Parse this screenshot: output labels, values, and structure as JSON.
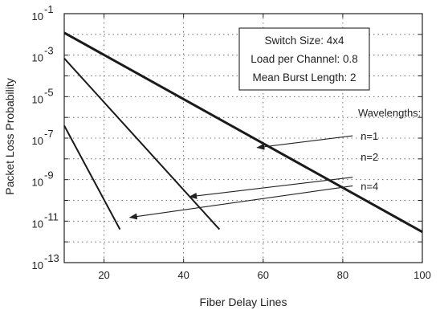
{
  "chart_data": {
    "type": "line",
    "title": "",
    "xlabel": "Fiber Delay Lines",
    "ylabel": "Packet Loss Probability",
    "x_range": [
      10,
      100
    ],
    "y_range": [
      1e-13,
      0.1
    ],
    "y_scale": "log",
    "grid": true,
    "x_ticks": [
      20,
      40,
      60,
      80,
      100
    ],
    "x_tick_labels": [
      "20",
      "40",
      "60",
      "80",
      "100"
    ],
    "y_ticks": [
      -13,
      -11,
      -9,
      -7,
      -5,
      -3,
      -1
    ],
    "y_tick_labels": [
      {
        "base": "10",
        "exp": "-13"
      },
      {
        "base": "10",
        "exp": "-11"
      },
      {
        "base": "10",
        "exp": "-9"
      },
      {
        "base": "10",
        "exp": "-7"
      },
      {
        "base": "10",
        "exp": "-5"
      },
      {
        "base": "10",
        "exp": "-3"
      },
      {
        "base": "10",
        "exp": "-1"
      }
    ],
    "info_box": [
      "Switch Size: 4x4",
      "Load per Channel: 0.8",
      "Mean Burst Length: 2"
    ],
    "legend_title": "Wavelengths:",
    "series": [
      {
        "name": "n=1",
        "x": [
          10,
          100
        ],
        "y": [
          0.012,
          3e-12
        ],
        "width": 3
      },
      {
        "name": "n=2",
        "x": [
          10,
          49
        ],
        "y": [
          0.0007,
          4e-12
        ],
        "width": 2
      },
      {
        "name": "n=4",
        "x": [
          10,
          24
        ],
        "y": [
          4e-07,
          4e-12
        ],
        "width": 2
      }
    ],
    "annotations": [
      {
        "label": "n=1",
        "text_at": [
          84.5,
          1.3e-07
        ],
        "tail": [
          82.5,
          1.3e-07
        ],
        "head": [
          58.5,
          3.5e-08
        ]
      },
      {
        "label": "n=2",
        "text_at": [
          84.5,
          1.3e-08
        ],
        "tail": [
          82.5,
          1.3e-09
        ],
        "head": [
          41.5,
          1.5e-10
        ]
      },
      {
        "label": "n=4",
        "text_at": [
          84.5,
          5e-10
        ],
        "tail": [
          82.5,
          5e-10
        ],
        "head": [
          26.5,
          1.5e-11
        ]
      }
    ]
  }
}
